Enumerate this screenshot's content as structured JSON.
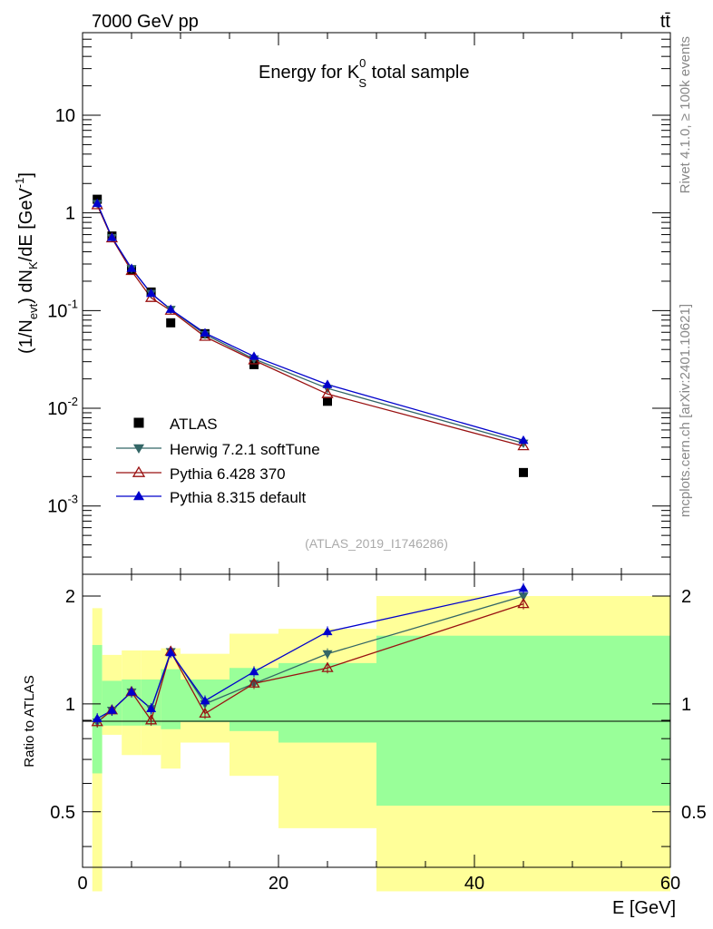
{
  "header": {
    "left": "7000 GeV pp",
    "right": "tt̄"
  },
  "side_labels": {
    "rivet": "Rivet 4.1.0, ≥ 100k events",
    "mcplots": "mcplots.cern.ch [arXiv:2401.10621]"
  },
  "chart_data": {
    "type": "scatter",
    "title": "Energy for K_S^0 total sample",
    "title_parts": {
      "prefix": "Energy for K",
      "sup": "0",
      "sub": "S",
      "suffix": " total sample"
    },
    "watermark": "(ATLAS_2019_I1746286)",
    "xlabel": "E [GeV]",
    "ylabel": "(1/N_evt) dN_K/dE [GeV^-1]",
    "ylabel_parts": {
      "a": "(1/N",
      "b": "evt",
      "c": ") dN",
      "d": "K",
      "e": "/dE [GeV",
      "f": "-1",
      "g": "]"
    },
    "ratio_ylabel": "Ratio to ATLAS",
    "xlim": [
      0,
      60
    ],
    "ylim_log": [
      0.0002,
      70
    ],
    "ratio_ylim": [
      0.35,
      2.3
    ],
    "x_ticks": [
      "0",
      "20",
      "40",
      "60"
    ],
    "y_ticks": [
      {
        "base": "10",
        "exp": "-3"
      },
      {
        "base": "10",
        "exp": "-2"
      },
      {
        "base": "10",
        "exp": "-1"
      },
      {
        "base": "1",
        "exp": ""
      },
      {
        "base": "10",
        "exp": ""
      }
    ],
    "ratio_ticks": [
      "0.5",
      "1",
      "2"
    ],
    "bins": [
      [
        1,
        2
      ],
      [
        2,
        4
      ],
      [
        4,
        6
      ],
      [
        6,
        8
      ],
      [
        8,
        10
      ],
      [
        10,
        15
      ],
      [
        15,
        20
      ],
      [
        20,
        30
      ],
      [
        30,
        60
      ]
    ],
    "x": [
      1.5,
      3,
      5,
      7,
      9,
      12.5,
      17.5,
      25,
      45
    ],
    "band_green": [
      [
        0.64,
        1.46
      ],
      [
        0.87,
        1.16
      ],
      [
        0.87,
        1.17
      ],
      [
        0.87,
        1.17
      ],
      [
        0.85,
        1.25
      ],
      [
        0.89,
        1.17
      ],
      [
        0.84,
        1.26
      ],
      [
        0.78,
        1.3
      ],
      [
        0.52,
        1.55
      ]
    ],
    "band_yellow": [
      [
        0.3,
        1.85
      ],
      [
        0.82,
        1.37
      ],
      [
        0.72,
        1.41
      ],
      [
        0.72,
        1.41
      ],
      [
        0.66,
        1.43
      ],
      [
        0.78,
        1.38
      ],
      [
        0.63,
        1.57
      ],
      [
        0.45,
        1.62
      ],
      [
        0.3,
        2.0
      ]
    ],
    "series": [
      {
        "name": "ATLAS",
        "marker": "square",
        "color": "#000000",
        "values": [
          1.38,
          0.58,
          0.26,
          0.155,
          0.075,
          0.058,
          0.028,
          0.0118,
          0.0022
        ]
      },
      {
        "name": "Herwig 7.2.1 softTune",
        "marker": "triangle-down",
        "color": "#336666",
        "values": [
          1.25,
          0.56,
          0.27,
          0.15,
          0.103,
          0.057,
          0.032,
          0.016,
          0.0044
        ],
        "ratio": [
          0.89,
          0.96,
          1.08,
          0.97,
          1.4,
          1.0,
          1.14,
          1.38,
          2.0
        ]
      },
      {
        "name": "Pythia 6.428 370",
        "marker": "triangle-up-open",
        "color": "#991111",
        "values": [
          1.2,
          0.55,
          0.255,
          0.135,
          0.1,
          0.054,
          0.031,
          0.014,
          0.0041
        ],
        "ratio": [
          0.89,
          0.96,
          1.08,
          0.9,
          1.4,
          0.94,
          1.14,
          1.26,
          1.9
        ]
      },
      {
        "name": "Pythia 8.315 default",
        "marker": "triangle-up",
        "color": "#0000cc",
        "values": [
          1.25,
          0.56,
          0.27,
          0.15,
          0.103,
          0.059,
          0.034,
          0.0175,
          0.0047
        ],
        "ratio": [
          0.91,
          0.96,
          1.08,
          0.97,
          1.39,
          1.02,
          1.23,
          1.59,
          2.1
        ]
      }
    ]
  }
}
